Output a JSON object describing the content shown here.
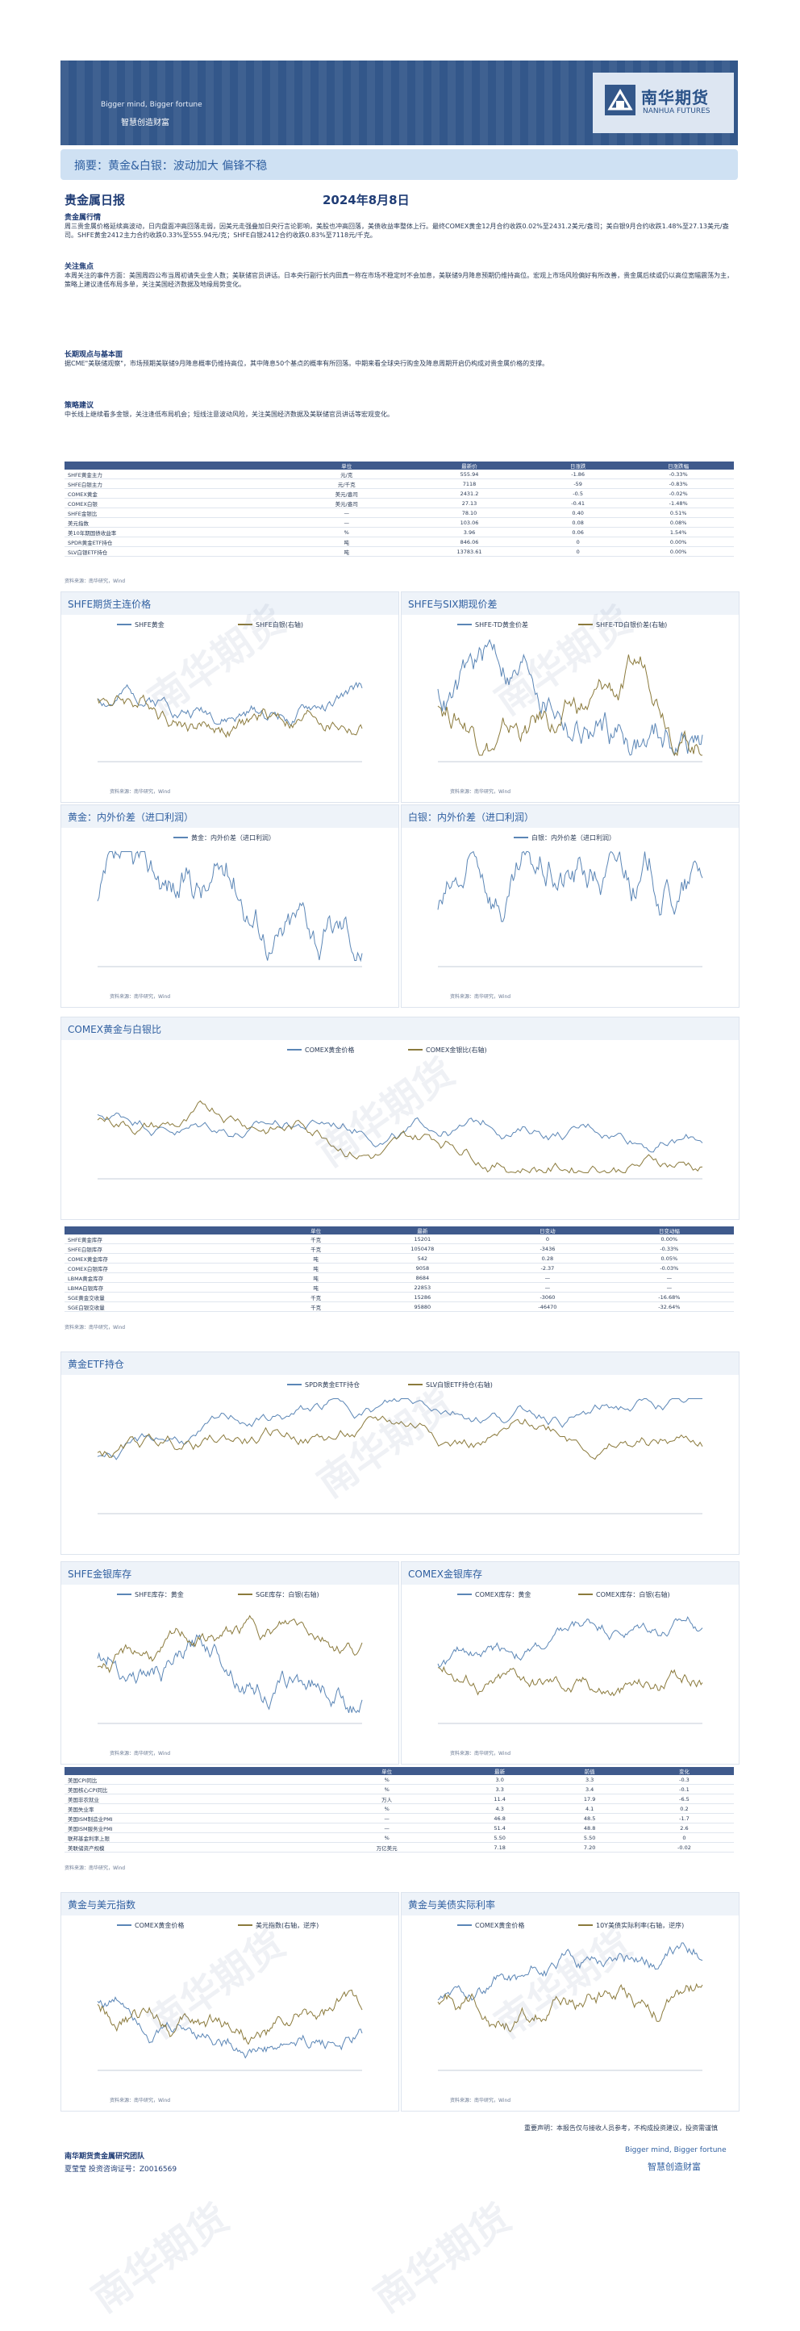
{
  "header": {
    "slogan_en": "Bigger mind, Bigger fortune",
    "slogan_cn": "智慧创造财富",
    "logo_cn": "南华期货",
    "logo_en": "NANHUA FUTURES"
  },
  "summary": "摘要：黄金&白银：波动加大 偏锋不稳",
  "title": "贵金属日报",
  "date": "2024年8月8日",
  "sections": [
    {
      "head": "贵金属行情",
      "text": "周三贵金属价格延续高波动，日内盘面冲高回落走弱，因美元走强叠加日央行言论影响，美股也冲高回落，美债收益率整体上行。最终COMEX黄金12月合约收跌0.02%至2431.2美元/盎司；美白银9月合约收跌1.48%至27.13美元/盎司。SHFE黄金2412主力合约收跌0.33%至555.94元/克；SHFE白银2412合约收跌0.83%至7118元/千克。"
    },
    {
      "head": "关注焦点",
      "text": "本周关注的事件方面：美国周四公布当周初请失业金人数；美联储官员讲话。日本央行副行长内田真一称在市场不稳定时不会加息，美联储9月降息预期仍维持高位。宏观上市场风险偏好有所改善，贵金属后续或仍以高位宽幅震荡为主，策略上建议逢低布局多单，关注美国经济数据及地缘局势变化。"
    },
    {
      "head": "长期观点与基本面",
      "text": "据CME\"美联储观察\"，市场预期美联储9月降息概率仍维持高位，其中降息50个基点的概率有所回落。中期来看全球央行购金及降息周期开启仍构成对贵金属价格的支撑。"
    },
    {
      "head": "策略建议",
      "text": "中长线上继续看多金银，关注逢低布局机会；短线注意波动风险，关注美国经济数据及美联储官员讲话等宏观变化。"
    }
  ],
  "table1": {
    "headers": [
      "",
      "单位",
      "最新价",
      "日涨跌",
      "日涨跌幅"
    ],
    "rows": [
      [
        "SHFE黄金主力",
        "元/克",
        "555.94",
        "-1.86",
        "-0.33%"
      ],
      [
        "SHFE白银主力",
        "元/千克",
        "7118",
        "-59",
        "-0.83%"
      ],
      [
        "COMEX黄金",
        "美元/盎司",
        "2431.2",
        "-0.5",
        "-0.02%"
      ],
      [
        "COMEX白银",
        "美元/盎司",
        "27.13",
        "-0.41",
        "-1.48%"
      ],
      [
        "SHFE金银比",
        "—",
        "78.10",
        "0.40",
        "0.51%"
      ],
      [
        "美元指数",
        "—",
        "103.06",
        "0.08",
        "0.08%"
      ],
      [
        "美10年期国债收益率",
        "%",
        "3.96",
        "0.06",
        "1.54%"
      ],
      [
        "SPDR黄金ETF持仓",
        "吨",
        "846.06",
        "0",
        "0.00%"
      ],
      [
        "SLV白银ETF持仓",
        "吨",
        "13783.61",
        "0",
        "0.00%"
      ]
    ],
    "source": "资料来源：南华研究，Wind"
  },
  "panels": [
    {
      "title": "SHFE期货主连价格",
      "legend": [
        "SHFE黄金",
        "SHFE白银(右轴)"
      ],
      "source": "资料来源：南华研究，Wind"
    },
    {
      "title": "SHFE与SIX期现价差",
      "legend": [
        "SHFE-TD黄金价差",
        "SHFE-TD白银价差(右轴)"
      ],
      "source": "资料来源：南华研究，Wind"
    },
    {
      "title": "黄金：内外价差（进口利润）",
      "legend": [
        "黄金：内外价差（进口利润）"
      ],
      "source": "资料来源：南华研究，Wind"
    },
    {
      "title": "白银：内外价差（进口利润）",
      "legend": [
        "白银：内外价差（进口利润）"
      ],
      "source": "资料来源：南华研究，Wind"
    },
    {
      "title": "COMEX黄金与白银比",
      "legend": [
        "COMEX黄金价格",
        "COMEX金银比(右轴)"
      ],
      "source": "资料来源：南华研究，Wind"
    },
    {
      "title": "黄金ETF持仓",
      "legend": [
        "SPDR黄金ETF持仓",
        "SLV白银ETF持仓(右轴)"
      ],
      "source": "资料来源：南华研究，Wind"
    },
    {
      "title": "SHFE金银库存",
      "legend": [
        "SHFE库存：黄金",
        "SGE库存：白银(右轴)"
      ],
      "source": "资料来源：南华研究，Wind"
    },
    {
      "title": "COMEX金银库存",
      "legend": [
        "COMEX库存：黄金",
        "COMEX库存：白银(右轴)"
      ],
      "source": "资料来源：南华研究，Wind"
    },
    {
      "title": "黄金与美元指数",
      "legend": [
        "COMEX黄金价格",
        "美元指数(右轴，逆序)"
      ],
      "source": "资料来源：南华研究，Wind"
    },
    {
      "title": "黄金与美债实际利率",
      "legend": [
        "COMEX黄金价格",
        "10Y美债实际利率(右轴，逆序)"
      ],
      "source": "资料来源：南华研究，Wind"
    }
  ],
  "table2": {
    "headers": [
      "",
      "单位",
      "最新",
      "日变动",
      "日变动幅"
    ],
    "rows": [
      [
        "SHFE黄金库存",
        "千克",
        "15201",
        "0",
        "0.00%"
      ],
      [
        "SHFE白银库存",
        "千克",
        "1050478",
        "-3436",
        "-0.33%"
      ],
      [
        "COMEX黄金库存",
        "吨",
        "542",
        "0.28",
        "0.05%"
      ],
      [
        "COMEX白银库存",
        "吨",
        "9058",
        "-2.37",
        "-0.03%"
      ],
      [
        "LBMA黄金库存",
        "吨",
        "8684",
        "—",
        "—"
      ],
      [
        "LBMA白银库存",
        "吨",
        "22853",
        "—",
        "—"
      ],
      [
        "SGE黄金交收量",
        "千克",
        "15286",
        "-3060",
        "-16.68%"
      ],
      [
        "SGE白银交收量",
        "千克",
        "95880",
        "-46470",
        "-32.64%"
      ]
    ],
    "source": "资料来源：南华研究，Wind"
  },
  "table3": {
    "headers": [
      "",
      "单位",
      "最新",
      "前值",
      "变化"
    ],
    "rows": [
      [
        "美国CPI同比",
        "%",
        "3.0",
        "3.3",
        "-0.3"
      ],
      [
        "美国核心CPI同比",
        "%",
        "3.3",
        "3.4",
        "-0.1"
      ],
      [
        "美国非农就业",
        "万人",
        "11.4",
        "17.9",
        "-6.5"
      ],
      [
        "美国失业率",
        "%",
        "4.3",
        "4.1",
        "0.2"
      ],
      [
        "美国ISM制造业PMI",
        "—",
        "46.8",
        "48.5",
        "-1.7"
      ],
      [
        "美国ISM服务业PMI",
        "—",
        "51.4",
        "48.8",
        "2.6"
      ],
      [
        "联邦基金利率上限",
        "%",
        "5.50",
        "5.50",
        "0"
      ],
      [
        "美联储资产规模",
        "万亿美元",
        "7.18",
        "7.20",
        "-0.02"
      ]
    ],
    "source": "资料来源：南华研究，Wind"
  },
  "footer": {
    "team": "南华期货贵金属研究团队",
    "analyst": "夏莹莹 投资咨询证号：Z0016569",
    "disclaimer": "重要声明：本报告仅与接收人员参考，不构成投资建议，投资需谨慎",
    "slogan_en": "Bigger mind, Bigger fortune",
    "slogan_cn": "智慧创造财富"
  },
  "watermark": "南华期货",
  "colors": {
    "primary": "#33578a",
    "gold_line": "#8b7a3c",
    "silver_line": "#5b86b6"
  }
}
